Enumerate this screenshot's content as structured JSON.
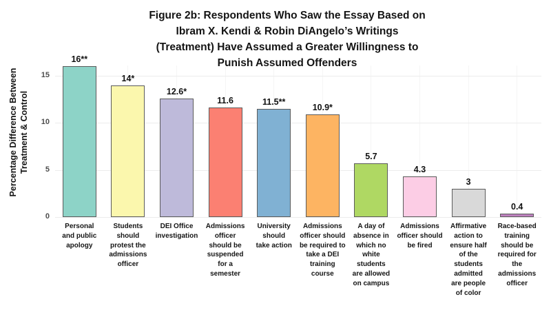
{
  "title": {
    "lines": [
      "Figure 2b: Respondents Who Saw the Essay Based on",
      "Ibram X. Kendi & Robin DiAngelo’s Writings",
      "(Treatment) Have Assumed a Greater Willingness to",
      "Punish Assumed Offenders"
    ]
  },
  "y_axis": {
    "label_lines": [
      "Percentage Difference Between",
      "Treatment & Control"
    ]
  },
  "chart_data": {
    "type": "bar",
    "title": "Figure 2b: Respondents Who Saw the Essay Based on Ibram X. Kendi & Robin DiAngelo’s Writings (Treatment) Have Assumed a Greater Willingness to Punish Assumed Offenders",
    "xlabel": "",
    "ylabel": "Percentage Difference Between Treatment & Control",
    "ylim": [
      0,
      17
    ],
    "yticks": [
      0,
      5,
      10,
      15
    ],
    "grid": "faint major horizontal + faint vertical at category centers",
    "legend": "none",
    "categories": [
      "Personal and public apology",
      "Students should protest the admissions officer",
      "DEI Office investigation",
      "Admissions officer should be suspended for a semester",
      "University should take action",
      "Admissions officer should be required to take a DEI training course",
      "A day of absence in which no white students are allowed on campus",
      "Admissions officer should be fired",
      "Affirmative action to ensure half of the students admitted are people of color",
      "Race-based training should be required for the admissions officer"
    ],
    "categories_wrapped": [
      [
        "Personal",
        "and public",
        "apology"
      ],
      [
        "Students",
        "should",
        "protest the",
        "admissions",
        "officer"
      ],
      [
        "DEI Office",
        "investigation"
      ],
      [
        "Admissions",
        "officer",
        "should be",
        "suspended",
        "for a",
        "semester"
      ],
      [
        "University",
        "should",
        "take action"
      ],
      [
        "Admissions",
        "officer should",
        "be required to",
        "take a DEI",
        "training",
        "course"
      ],
      [
        "A day of",
        "absence in",
        "which no",
        "white",
        "students",
        "are allowed",
        "on campus"
      ],
      [
        "Admissions",
        "officer should",
        "be fired"
      ],
      [
        "Affirmative",
        "action to",
        "ensure half",
        "of the",
        "students",
        "admitted",
        "are people",
        "of color"
      ],
      [
        "Race-based",
        "training",
        "should be",
        "required for",
        "the",
        "admissions",
        "officer"
      ]
    ],
    "values": [
      16,
      14,
      12.6,
      11.6,
      11.5,
      10.9,
      5.7,
      4.3,
      3,
      0.4
    ],
    "bar_labels": [
      "16**",
      "14*",
      "12.6*",
      "11.6",
      "11.5**",
      "10.9*",
      "5.7",
      "4.3",
      "3",
      "0.4"
    ],
    "bar_colors": [
      "#8DD3C7",
      "#FBF7AD",
      "#BEBADA",
      "#FB8072",
      "#80B1D3",
      "#FDB462",
      "#AFD863",
      "#FCCDE5",
      "#D9D9D9",
      "#BC80BD"
    ],
    "bar_border_color": "#5a5a5a",
    "gridline_color": "#ececec"
  }
}
